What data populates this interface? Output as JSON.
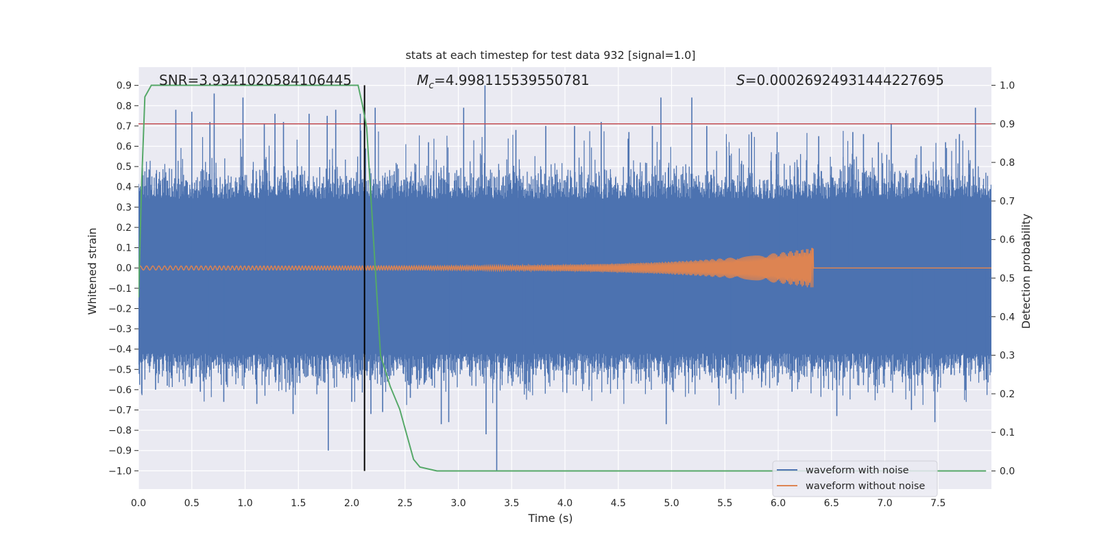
{
  "chart_data": {
    "type": "line",
    "title": "stats at each timestep for test data 932 [signal=1.0]",
    "xlabel": "Time (s)",
    "ylabel": "Whitened strain",
    "y2label": "Detection probability",
    "xlim": [
      0,
      8
    ],
    "ylim": [
      -1.09,
      0.99
    ],
    "y2lim": [
      -0.047,
      1.047
    ],
    "xticks": [
      "0.0",
      "0.5",
      "1.0",
      "1.5",
      "2.0",
      "2.5",
      "3.0",
      "3.5",
      "4.0",
      "4.5",
      "5.0",
      "5.5",
      "6.0",
      "6.5",
      "7.0",
      "7.5"
    ],
    "yticks": [
      "0.9",
      "0.8",
      "0.7",
      "0.6",
      "0.5",
      "0.4",
      "0.3",
      "0.2",
      "0.1",
      "0.0",
      "−0.1",
      "−0.2",
      "−0.3",
      "−0.4",
      "−0.5",
      "−0.6",
      "−0.7",
      "−0.8",
      "−0.9",
      "−1.0"
    ],
    "y2ticks": [
      "1.0",
      "0.9",
      "0.8",
      "0.7",
      "0.6",
      "0.5",
      "0.4",
      "0.3",
      "0.2",
      "0.1",
      "0.0"
    ],
    "annotations": {
      "snr": "SNR=3.9341020584106445",
      "mc_symbol": "M",
      "mc_sub": "c",
      "mc_value": "=4.998115539550781",
      "s_symbol": "S",
      "s_value": "=0.00026924931444227695"
    },
    "threshold": {
      "axis": "y2",
      "value": 0.9,
      "color": "#c44e52"
    },
    "vline": {
      "x": 2.12,
      "color": "#000000"
    },
    "noisy": {
      "name": "waveform with noise",
      "color": "#4c72b0",
      "duration": 8.0,
      "envelope_normal": [
        -0.42,
        0.34
      ],
      "spikes": [
        {
          "x": 0.03,
          "y": -0.62
        },
        {
          "x": 0.08,
          "y": 0.42
        },
        {
          "x": 0.16,
          "y": -0.6
        },
        {
          "x": 0.27,
          "y": -0.58
        },
        {
          "x": 0.35,
          "y": 0.78
        },
        {
          "x": 0.42,
          "y": -0.55
        },
        {
          "x": 0.5,
          "y": 0.77
        },
        {
          "x": 0.58,
          "y": -0.61
        },
        {
          "x": 0.67,
          "y": 0.72
        },
        {
          "x": 0.71,
          "y": 0.86
        },
        {
          "x": 0.8,
          "y": -0.66
        },
        {
          "x": 0.98,
          "y": 0.84
        },
        {
          "x": 1.11,
          "y": -0.67
        },
        {
          "x": 1.18,
          "y": 0.71
        },
        {
          "x": 1.28,
          "y": 0.76
        },
        {
          "x": 1.36,
          "y": 0.72
        },
        {
          "x": 1.45,
          "y": -0.72
        },
        {
          "x": 1.6,
          "y": 0.76
        },
        {
          "x": 1.77,
          "y": 0.75
        },
        {
          "x": 1.78,
          "y": -0.9
        },
        {
          "x": 1.85,
          "y": 0.78
        },
        {
          "x": 2.0,
          "y": -0.66
        },
        {
          "x": 2.08,
          "y": 0.76
        },
        {
          "x": 2.18,
          "y": -0.72
        },
        {
          "x": 2.22,
          "y": 0.79
        },
        {
          "x": 2.29,
          "y": -0.71
        },
        {
          "x": 2.55,
          "y": -0.64
        },
        {
          "x": 2.72,
          "y": 0.62
        },
        {
          "x": 2.84,
          "y": -0.77
        },
        {
          "x": 2.91,
          "y": -0.76
        },
        {
          "x": 3.05,
          "y": 0.79
        },
        {
          "x": 3.25,
          "y": 0.9
        },
        {
          "x": 3.26,
          "y": -0.82
        },
        {
          "x": 3.36,
          "y": -1.0
        },
        {
          "x": 3.54,
          "y": 0.68
        },
        {
          "x": 3.82,
          "y": 0.7
        },
        {
          "x": 4.09,
          "y": 0.7
        },
        {
          "x": 4.34,
          "y": 0.72
        },
        {
          "x": 4.6,
          "y": 0.67
        },
        {
          "x": 4.82,
          "y": 0.7
        },
        {
          "x": 4.95,
          "y": -0.77
        },
        {
          "x": 4.9,
          "y": 0.84
        },
        {
          "x": 5.19,
          "y": 0.84
        },
        {
          "x": 5.33,
          "y": 0.7
        },
        {
          "x": 5.56,
          "y": -0.62
        },
        {
          "x": 5.75,
          "y": 0.67
        },
        {
          "x": 5.99,
          "y": 0.67
        },
        {
          "x": 6.13,
          "y": -0.61
        },
        {
          "x": 6.38,
          "y": 0.65
        },
        {
          "x": 6.55,
          "y": -0.73
        },
        {
          "x": 6.7,
          "y": 0.67
        },
        {
          "x": 6.8,
          "y": 0.66
        },
        {
          "x": 6.94,
          "y": 0.62
        },
        {
          "x": 7.06,
          "y": 0.71
        },
        {
          "x": 7.25,
          "y": -0.7
        },
        {
          "x": 7.34,
          "y": 0.6
        },
        {
          "x": 7.47,
          "y": -0.76
        },
        {
          "x": 7.57,
          "y": 0.62
        },
        {
          "x": 7.7,
          "y": 0.66
        },
        {
          "x": 7.85,
          "y": 0.79
        },
        {
          "x": 7.95,
          "y": -0.55
        }
      ]
    },
    "clean": {
      "name": "waveform without noise",
      "color": "#dd8452",
      "t_start": 0.0,
      "t_merge": 6.33,
      "amp_start": 0.01,
      "amp_merge": 0.1,
      "osc_start_hz": 16,
      "osc_end_hz": 50
    },
    "probability": {
      "name": "detection probability",
      "color": "#55a868",
      "x": [
        0.0,
        0.03,
        0.06,
        0.12,
        0.2,
        0.4,
        0.8,
        1.2,
        1.6,
        2.0,
        2.06,
        2.1,
        2.14,
        2.2,
        2.27,
        2.36,
        2.45,
        2.52,
        2.58,
        2.64,
        2.8,
        3.5,
        5.0,
        6.5,
        7.95
      ],
      "y": [
        0.45,
        0.75,
        0.97,
        1.0,
        1.0,
        1.0,
        1.0,
        1.0,
        1.0,
        1.0,
        1.0,
        0.95,
        0.89,
        0.62,
        0.3,
        0.22,
        0.16,
        0.09,
        0.03,
        0.01,
        0.0,
        0.0,
        0.0,
        0.0,
        0.0
      ]
    },
    "legend": {
      "position": "lower-right",
      "entries": [
        {
          "label": "waveform with noise",
          "color": "#4c72b0"
        },
        {
          "label": "waveform without noise",
          "color": "#dd8452"
        }
      ]
    }
  }
}
